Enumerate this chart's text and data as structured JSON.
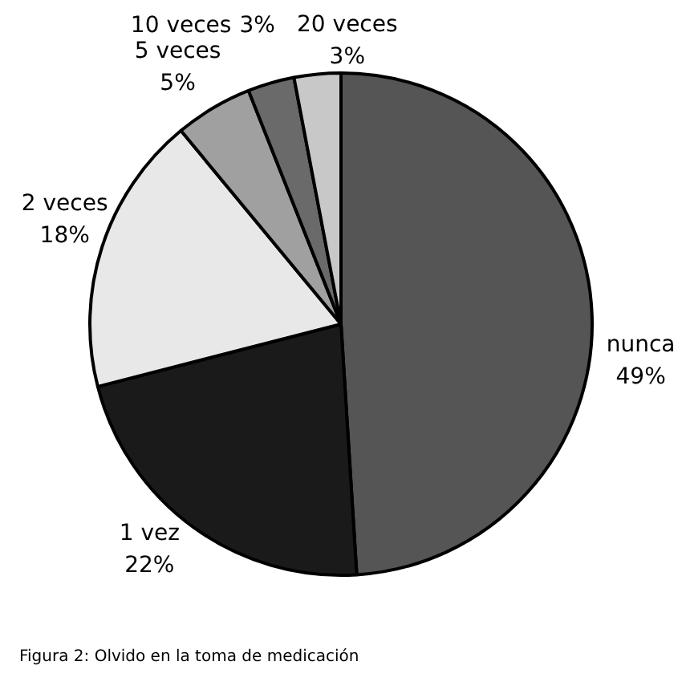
{
  "chart_data": {
    "type": "pie",
    "categories": [
      "nunca",
      "1 vez",
      "2 veces",
      "5 veces",
      "10 veces",
      "20 veces"
    ],
    "values": [
      49,
      22,
      18,
      5,
      3,
      3
    ],
    "value_labels": [
      "49%",
      "22%",
      "18%",
      "5%",
      "3%",
      "3%"
    ],
    "colors": [
      "#555555",
      "#1a1a1a",
      "#e8e8e8",
      "#a0a0a0",
      "#6a6a6a",
      "#c8c8c8"
    ],
    "annotations": [
      "Figura 2: Olvido en la toma de medicación"
    ]
  }
}
